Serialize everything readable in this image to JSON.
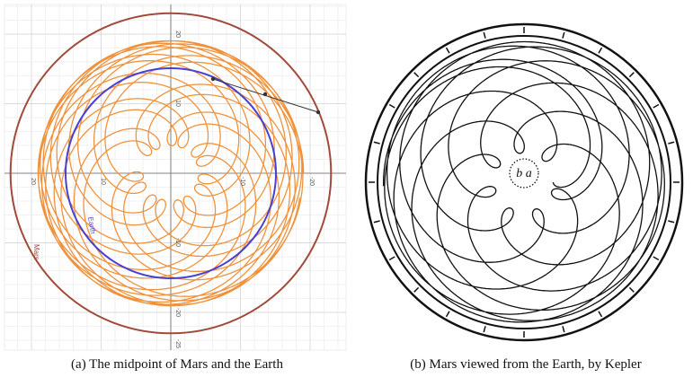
{
  "figures": [
    {
      "caption": "(a) The midpoint of Mars and the Earth",
      "x_tick_labels": [
        "20",
        "10",
        "-10",
        "-20"
      ],
      "y_tick_labels": [
        "20",
        "10",
        "-10",
        "-20",
        "-25"
      ],
      "orbit_labels": [
        "Mars",
        "Earth"
      ]
    },
    {
      "caption": "(b) Mars viewed from the Earth, by Kepler",
      "center_label": "b a"
    }
  ]
}
